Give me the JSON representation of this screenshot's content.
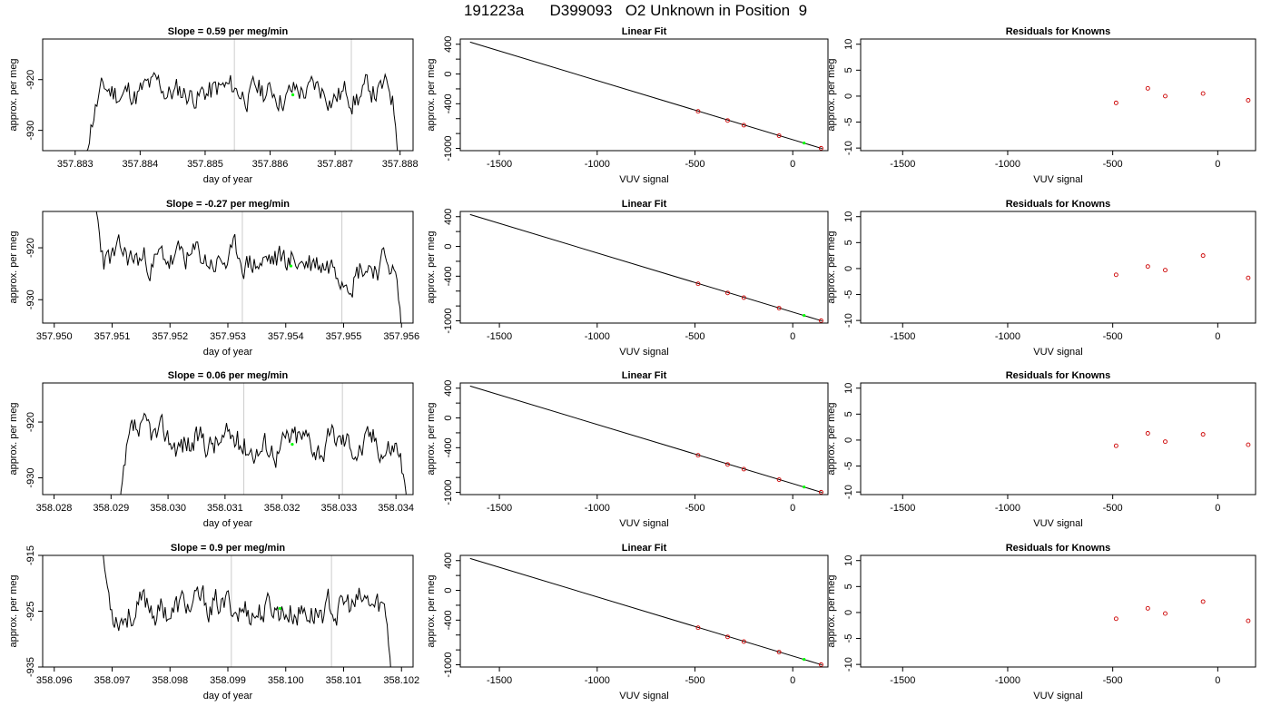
{
  "page_title": {
    "date": "191223a",
    "tank": "D399093",
    "description": "O2 Unknown in Position  9"
  },
  "chart_data": [
    {
      "row": 1,
      "panels": [
        {
          "type": "line",
          "title_prefix": "Slope = ",
          "slope": "0.59",
          "slope_unit": " per meg/min",
          "xlabel": "day of year",
          "ylabel": "approx. per meg",
          "xlim": [
            357.8825,
            357.8882
          ],
          "ylim": [
            -934,
            -912
          ],
          "xticks": [
            "357.883",
            "357.884",
            "357.885",
            "357.886",
            "357.887",
            "357.888"
          ],
          "yticks": [
            "-920",
            "-930"
          ],
          "vlines": [
            357.88545,
            357.88725
          ],
          "marker": {
            "x": 357.88635,
            "y": -923,
            "color": "#00ff00"
          },
          "trace": {
            "x_start": 357.88315,
            "x_end": 357.888,
            "baseline": -922.5,
            "noise": 1.7,
            "seed": 11
          }
        },
        {
          "type": "scatter",
          "title": "Linear Fit",
          "xlabel": "VUV signal",
          "ylabel": "approx. per meg",
          "xlim": [
            -1700,
            180
          ],
          "ylim": [
            -1030,
            470
          ],
          "xticks": [
            "-1500",
            "-1000",
            "-500",
            "0"
          ],
          "yticks": [
            "400",
            "0",
            "-400",
            "-1000"
          ],
          "fit_line": {
            "x": [
              -1650,
              150
            ],
            "y": [
              429,
              -1002
            ]
          },
          "points": [
            {
              "x": -484,
              "y": -502
            },
            {
              "x": -333,
              "y": -625
            },
            {
              "x": -250,
              "y": -688
            },
            {
              "x": -70,
              "y": -829
            },
            {
              "x": 145,
              "y": -998
            }
          ],
          "unknown": {
            "x": 58,
            "y": -928
          },
          "point_color": "#cc0000",
          "unknown_color": "#00ff00"
        },
        {
          "type": "scatter",
          "title": "Residuals for Knowns",
          "xlabel": "VUV signal",
          "ylabel": "approx. per meg",
          "xlim": [
            -1700,
            180
          ],
          "ylim": [
            -10.5,
            11
          ],
          "xticks": [
            "-1500",
            "-1000",
            "-500",
            "0"
          ],
          "yticks": [
            "10",
            "5",
            "0",
            "-5",
            "-10"
          ],
          "points": [
            {
              "x": -484,
              "y": -1.3
            },
            {
              "x": -333,
              "y": 1.5
            },
            {
              "x": -250,
              "y": 0.0
            },
            {
              "x": -70,
              "y": 0.5
            },
            {
              "x": 145,
              "y": -0.8
            }
          ],
          "point_color": "#cc0000"
        }
      ]
    },
    {
      "row": 2,
      "panels": [
        {
          "type": "line",
          "title_prefix": "Slope = ",
          "slope": "-0.27",
          "slope_unit": " per meg/min",
          "xlabel": "day of year",
          "ylabel": "approx. per meg",
          "xlim": [
            357.9498,
            357.9562
          ],
          "ylim": [
            -934.5,
            -913
          ],
          "xticks": [
            "357.950",
            "357.951",
            "357.952",
            "357.953",
            "357.954",
            "357.955",
            "357.956"
          ],
          "yticks": [
            "-920",
            "-930"
          ],
          "vlines": [
            357.95325,
            357.95497
          ],
          "marker": {
            "x": 357.95409,
            "y": -923.5,
            "color": "#00ff00"
          },
          "trace": {
            "x_start": 357.9506,
            "x_end": 357.956,
            "baseline": -922.5,
            "noise": 1.8,
            "seed": 23,
            "high_start": true
          }
        },
        {
          "type": "scatter",
          "title": "Linear Fit",
          "xlabel": "VUV signal",
          "ylabel": "approx. per meg",
          "xlim": [
            -1700,
            180
          ],
          "ylim": [
            -1030,
            470
          ],
          "xticks": [
            "-1500",
            "-1000",
            "-500",
            "0"
          ],
          "yticks": [
            "400",
            "0",
            "-400",
            "-1000"
          ],
          "fit_line": {
            "x": [
              -1650,
              150
            ],
            "y": [
              429,
              -1002
            ]
          },
          "points": [
            {
              "x": -484,
              "y": -502
            },
            {
              "x": -333,
              "y": -625
            },
            {
              "x": -250,
              "y": -688
            },
            {
              "x": -70,
              "y": -829
            },
            {
              "x": 145,
              "y": -998
            }
          ],
          "unknown": {
            "x": 58,
            "y": -928
          },
          "point_color": "#cc0000",
          "unknown_color": "#00ff00"
        },
        {
          "type": "scatter",
          "title": "Residuals for Knowns",
          "xlabel": "VUV signal",
          "ylabel": "approx. per meg",
          "xlim": [
            -1700,
            180
          ],
          "ylim": [
            -10.5,
            11
          ],
          "xticks": [
            "-1500",
            "-1000",
            "-500",
            "0"
          ],
          "yticks": [
            "10",
            "5",
            "0",
            "-5",
            "-10"
          ],
          "points": [
            {
              "x": -484,
              "y": -1.2
            },
            {
              "x": -333,
              "y": 0.4
            },
            {
              "x": -250,
              "y": -0.3
            },
            {
              "x": -70,
              "y": 2.5
            },
            {
              "x": 145,
              "y": -1.8
            }
          ],
          "point_color": "#cc0000"
        }
      ]
    },
    {
      "row": 3,
      "panels": [
        {
          "type": "line",
          "title_prefix": "Slope = ",
          "slope": "0.06",
          "slope_unit": " per meg/min",
          "xlabel": "day of year",
          "ylabel": "approx. per meg",
          "xlim": [
            358.0278,
            358.0343
          ],
          "ylim": [
            -933,
            -913
          ],
          "xticks": [
            "358.028",
            "358.029",
            "358.030",
            "358.031",
            "358.032",
            "358.033",
            "358.034"
          ],
          "yticks": [
            "-920",
            "-930"
          ],
          "vlines": [
            358.03133,
            358.03306
          ],
          "marker": {
            "x": 358.03218,
            "y": -924,
            "color": "#00ff00"
          },
          "trace": {
            "x_start": 358.02915,
            "x_end": 358.0342,
            "baseline": -923.5,
            "noise": 1.7,
            "seed": 37
          }
        },
        {
          "type": "scatter",
          "title": "Linear Fit",
          "xlabel": "VUV signal",
          "ylabel": "approx. per meg",
          "xlim": [
            -1700,
            180
          ],
          "ylim": [
            -1030,
            470
          ],
          "xticks": [
            "-1500",
            "-1000",
            "-500",
            "0"
          ],
          "yticks": [
            "400",
            "0",
            "-400",
            "-1000"
          ],
          "fit_line": {
            "x": [
              -1650,
              150
            ],
            "y": [
              429,
              -1002
            ]
          },
          "points": [
            {
              "x": -484,
              "y": -502
            },
            {
              "x": -333,
              "y": -625
            },
            {
              "x": -250,
              "y": -688
            },
            {
              "x": -70,
              "y": -829
            },
            {
              "x": 145,
              "y": -998
            }
          ],
          "unknown": {
            "x": 58,
            "y": -928
          },
          "point_color": "#cc0000",
          "unknown_color": "#00ff00"
        },
        {
          "type": "scatter",
          "title": "Residuals for Knowns",
          "xlabel": "VUV signal",
          "ylabel": "approx. per meg",
          "xlim": [
            -1700,
            180
          ],
          "ylim": [
            -10.5,
            11
          ],
          "xticks": [
            "-1500",
            "-1000",
            "-500",
            "0"
          ],
          "yticks": [
            "10",
            "5",
            "0",
            "-5",
            "-10"
          ],
          "points": [
            {
              "x": -484,
              "y": -1.1
            },
            {
              "x": -333,
              "y": 1.3
            },
            {
              "x": -250,
              "y": -0.3
            },
            {
              "x": -70,
              "y": 1.1
            },
            {
              "x": 145,
              "y": -0.9
            }
          ],
          "point_color": "#cc0000"
        }
      ]
    },
    {
      "row": 4,
      "panels": [
        {
          "type": "line",
          "title_prefix": "Slope = ",
          "slope": "0.9",
          "slope_unit": " per meg/min",
          "xlabel": "day of year",
          "ylabel": "approx. per meg",
          "xlim": [
            358.0958,
            358.1022
          ],
          "ylim": [
            -935,
            -915
          ],
          "xticks": [
            "358.096",
            "358.097",
            "358.098",
            "358.099",
            "358.100",
            "358.101",
            "358.102"
          ],
          "yticks": [
            "-915",
            "-925",
            "-935"
          ],
          "vlines": [
            358.09906,
            358.10079
          ],
          "marker": {
            "x": 358.0999,
            "y": -924.5,
            "color": "#00ff00"
          },
          "trace": {
            "x_start": 358.09675,
            "x_end": 358.10185,
            "baseline": -924.5,
            "noise": 1.7,
            "seed": 53,
            "high_start": true
          }
        },
        {
          "type": "scatter",
          "title": "Linear Fit",
          "xlabel": "VUV signal",
          "ylabel": "approx. per meg",
          "xlim": [
            -1700,
            180
          ],
          "ylim": [
            -1030,
            470
          ],
          "xticks": [
            "-1500",
            "-1000",
            "-500",
            "0"
          ],
          "yticks": [
            "400",
            "0",
            "-400",
            "-1000"
          ],
          "fit_line": {
            "x": [
              -1650,
              150
            ],
            "y": [
              429,
              -1002
            ]
          },
          "points": [
            {
              "x": -484,
              "y": -502
            },
            {
              "x": -333,
              "y": -625
            },
            {
              "x": -250,
              "y": -688
            },
            {
              "x": -70,
              "y": -829
            },
            {
              "x": 145,
              "y": -998
            }
          ],
          "unknown": {
            "x": 58,
            "y": -928
          },
          "point_color": "#cc0000",
          "unknown_color": "#00ff00"
        },
        {
          "type": "scatter",
          "title": "Residuals for Knowns",
          "xlabel": "VUV signal",
          "ylabel": "approx. per meg",
          "xlim": [
            -1700,
            180
          ],
          "ylim": [
            -10.5,
            11
          ],
          "xticks": [
            "-1500",
            "-1000",
            "-500",
            "0"
          ],
          "yticks": [
            "10",
            "5",
            "0",
            "-5",
            "-10"
          ],
          "points": [
            {
              "x": -484,
              "y": -1.2
            },
            {
              "x": -333,
              "y": 0.8
            },
            {
              "x": -250,
              "y": -0.2
            },
            {
              "x": -70,
              "y": 2.1
            },
            {
              "x": 145,
              "y": -1.6
            }
          ],
          "point_color": "#cc0000"
        }
      ]
    }
  ]
}
